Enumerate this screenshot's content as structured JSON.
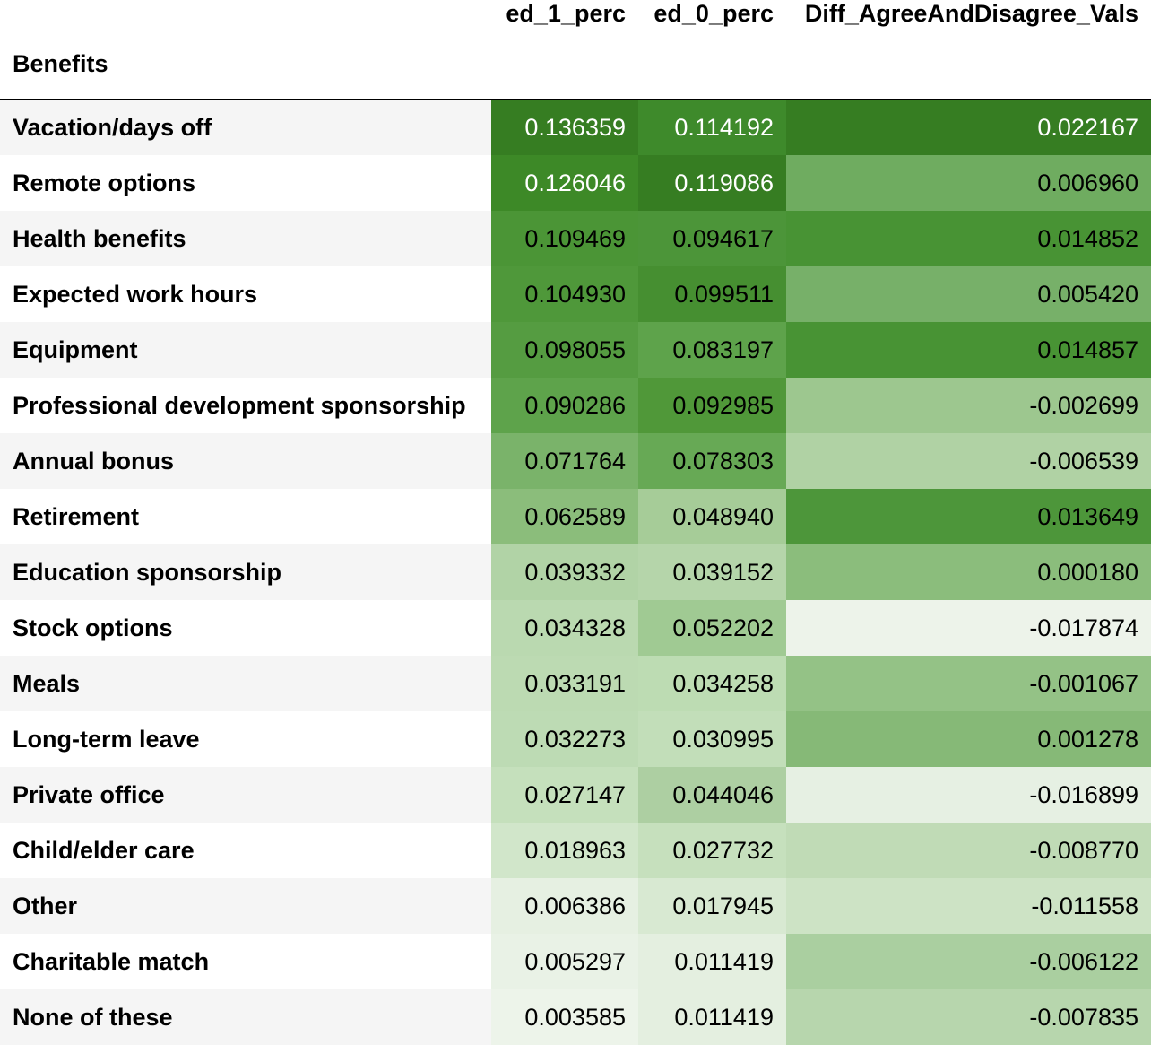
{
  "table": {
    "index_name": "Benefits",
    "columns": [
      "ed_1_perc",
      "ed_0_perc",
      "Diff_AgreeAndDisagree_Vals"
    ],
    "rows": [
      {
        "label": "Vacation/days off",
        "ed_1_perc": "0.136359",
        "ed_0_perc": "0.114192",
        "diff": "0.022167",
        "bg": [
          "#367d22",
          "#3e8a2b",
          "#367d22"
        ],
        "fg": [
          "#ffffff",
          "#ffffff",
          "#ffffff"
        ]
      },
      {
        "label": "Remote options",
        "ed_1_perc": "0.126046",
        "ed_0_perc": "0.119086",
        "diff": "0.006960",
        "bg": [
          "#3d8927",
          "#367d22",
          "#6fac60"
        ],
        "fg": [
          "#ffffff",
          "#ffffff",
          "#000000"
        ]
      },
      {
        "label": "Health benefits",
        "ed_1_perc": "0.109469",
        "ed_0_perc": "0.094617",
        "diff": "0.014852",
        "bg": [
          "#4b9536",
          "#4c9539",
          "#489334"
        ],
        "fg": [
          "#000000",
          "#000000",
          "#000000"
        ]
      },
      {
        "label": "Expected work hours",
        "ed_1_perc": "0.104930",
        "ed_0_perc": "0.099511",
        "diff": "0.005420",
        "bg": [
          "#4f983a",
          "#468f31",
          "#77b069"
        ],
        "fg": [
          "#000000",
          "#000000",
          "#000000"
        ]
      },
      {
        "label": "Equipment",
        "ed_1_perc": "0.098055",
        "ed_0_perc": "0.083197",
        "diff": "0.014857",
        "bg": [
          "#559c41",
          "#5ea34b",
          "#489334"
        ],
        "fg": [
          "#000000",
          "#000000",
          "#000000"
        ]
      },
      {
        "label": "Professional development sponsorship",
        "ed_1_perc": "0.090286",
        "ed_0_perc": "0.092985",
        "diff": "-0.002699",
        "bg": [
          "#5ea34b",
          "#509839",
          "#9dc78f"
        ],
        "fg": [
          "#000000",
          "#000000",
          "#000000"
        ]
      },
      {
        "label": "Annual bonus",
        "ed_1_perc": "0.071764",
        "ed_0_perc": "0.078303",
        "diff": "-0.006539",
        "bg": [
          "#7ab36a",
          "#67a955",
          "#b0d2a4"
        ],
        "fg": [
          "#000000",
          "#000000",
          "#000000"
        ]
      },
      {
        "label": "Retirement",
        "ed_1_perc": "0.062589",
        "ed_0_perc": "0.048940",
        "diff": "0.013649",
        "bg": [
          "#8bbd7b",
          "#a6cc98",
          "#4d963a"
        ],
        "fg": [
          "#000000",
          "#000000",
          "#000000"
        ]
      },
      {
        "label": "Education sponsorship",
        "ed_1_perc": "0.039332",
        "ed_0_perc": "0.039152",
        "diff": "0.000180",
        "bg": [
          "#b1d3a6",
          "#b5d5aa",
          "#8bbd7c"
        ],
        "fg": [
          "#000000",
          "#000000",
          "#000000"
        ]
      },
      {
        "label": "Stock options",
        "ed_1_perc": "0.034328",
        "ed_0_perc": "0.052202",
        "diff": "-0.017874",
        "bg": [
          "#bad9b0",
          "#a0ca93",
          "#edf3ea"
        ],
        "fg": [
          "#000000",
          "#000000",
          "#000000"
        ]
      },
      {
        "label": "Meals",
        "ed_1_perc": "0.033191",
        "ed_0_perc": "0.034258",
        "diff": "-0.001067",
        "bg": [
          "#bcdab2",
          "#bddcb3",
          "#94c286"
        ],
        "fg": [
          "#000000",
          "#000000",
          "#000000"
        ]
      },
      {
        "label": "Long-term leave",
        "ed_1_perc": "0.032273",
        "ed_0_perc": "0.030995",
        "diff": "0.001278",
        "bg": [
          "#bddbb4",
          "#c2deb9",
          "#86b977"
        ],
        "fg": [
          "#000000",
          "#000000",
          "#000000"
        ]
      },
      {
        "label": "Private office",
        "ed_1_perc": "0.027147",
        "ed_0_perc": "0.044046",
        "diff": "-0.016899",
        "bg": [
          "#c5e0bc",
          "#adcfa2",
          "#e6f0e3"
        ],
        "fg": [
          "#000000",
          "#000000",
          "#000000"
        ]
      },
      {
        "label": "Child/elder care",
        "ed_1_perc": "0.018963",
        "ed_0_perc": "0.027732",
        "diff": "-0.008770",
        "bg": [
          "#d1e6ca",
          "#c6e0bd",
          "#c0dbb6"
        ],
        "fg": [
          "#000000",
          "#000000",
          "#000000"
        ]
      },
      {
        "label": "Other",
        "ed_1_perc": "0.006386",
        "ed_0_perc": "0.017945",
        "diff": "-0.011558",
        "bg": [
          "#e6f0e2",
          "#d8e9d2",
          "#cde3c5"
        ],
        "fg": [
          "#000000",
          "#000000",
          "#000000"
        ]
      },
      {
        "label": "Charitable match",
        "ed_1_perc": "0.005297",
        "ed_0_perc": "0.011419",
        "diff": "-0.006122",
        "bg": [
          "#e9f2e6",
          "#e4efe0",
          "#aacfa0"
        ],
        "fg": [
          "#000000",
          "#000000",
          "#000000"
        ]
      },
      {
        "label": "None of these",
        "ed_1_perc": "0.003585",
        "ed_0_perc": "0.011419",
        "diff": "-0.007835",
        "bg": [
          "#edf4ea",
          "#e4efe0",
          "#b7d6ad"
        ],
        "fg": [
          "#000000",
          "#000000",
          "#000000"
        ]
      }
    ]
  }
}
